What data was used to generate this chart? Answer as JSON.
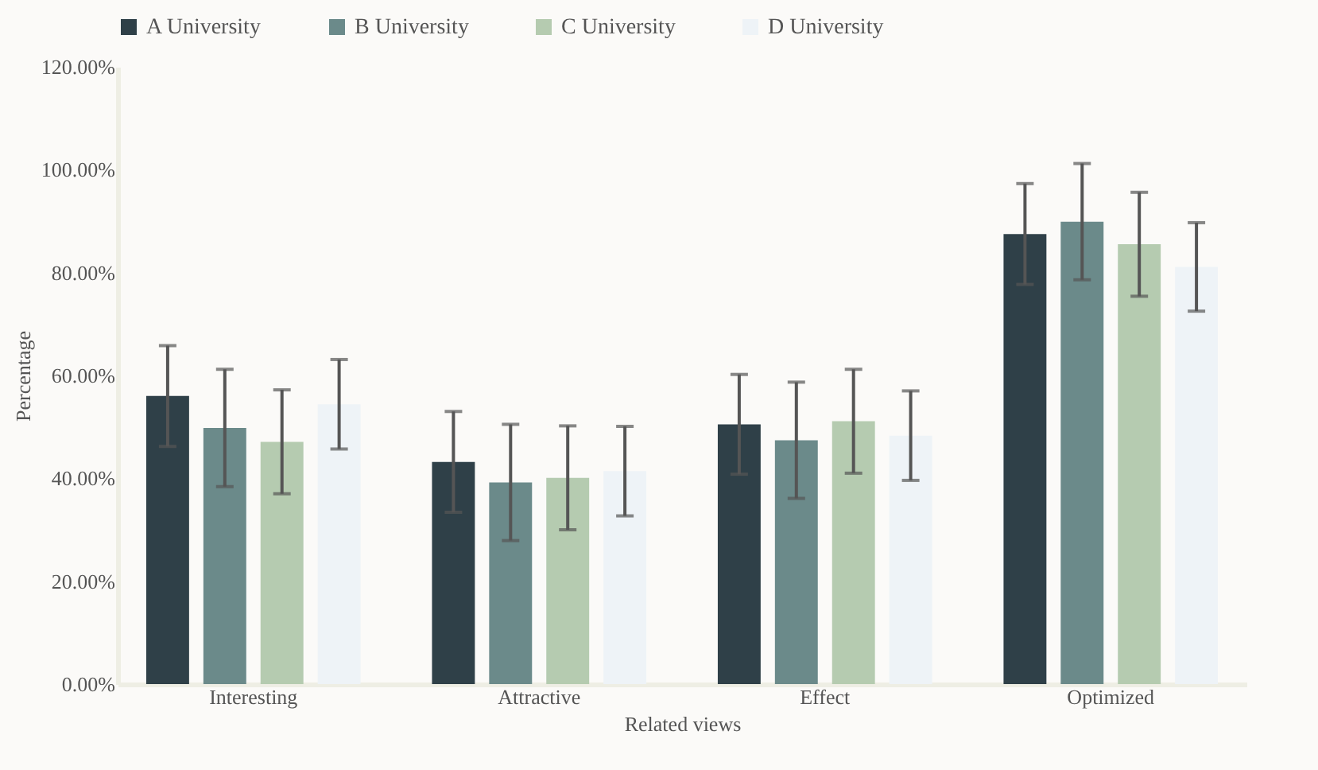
{
  "chart_data": {
    "type": "bar",
    "xlabel": "Related views",
    "ylabel": "Percentage",
    "categories": [
      "Interesting",
      "Attractive",
      "Effect",
      "Optimized"
    ],
    "series": [
      {
        "name": "A University",
        "color": "#2f4048",
        "values": [
          56.0,
          43.2,
          50.5,
          87.5
        ],
        "errors": [
          9.8,
          9.8,
          9.7,
          9.8
        ]
      },
      {
        "name": "B University",
        "color": "#6b8a8a",
        "values": [
          49.8,
          39.2,
          47.4,
          89.9
        ],
        "errors": [
          11.4,
          11.3,
          11.3,
          11.3
        ]
      },
      {
        "name": "C University",
        "color": "#b5cbb0",
        "values": [
          47.1,
          40.1,
          51.1,
          85.5
        ],
        "errors": [
          10.1,
          10.1,
          10.1,
          10.1
        ]
      },
      {
        "name": "D University",
        "color": "#eef3f7",
        "values": [
          54.4,
          41.4,
          48.3,
          81.1
        ],
        "errors": [
          8.7,
          8.7,
          8.7,
          8.6
        ]
      }
    ],
    "ylim": [
      0,
      120
    ],
    "yticks": [
      {
        "value": 0,
        "label": "0.00%"
      },
      {
        "value": 20,
        "label": "20.00%"
      },
      {
        "value": 40,
        "label": "40.00%"
      },
      {
        "value": 60,
        "label": "60.00%"
      },
      {
        "value": 80,
        "label": "80.00%"
      },
      {
        "value": 100,
        "label": "100.00%"
      },
      {
        "value": 120,
        "label": "120.00%"
      }
    ],
    "grid": false,
    "legend": "top"
  }
}
